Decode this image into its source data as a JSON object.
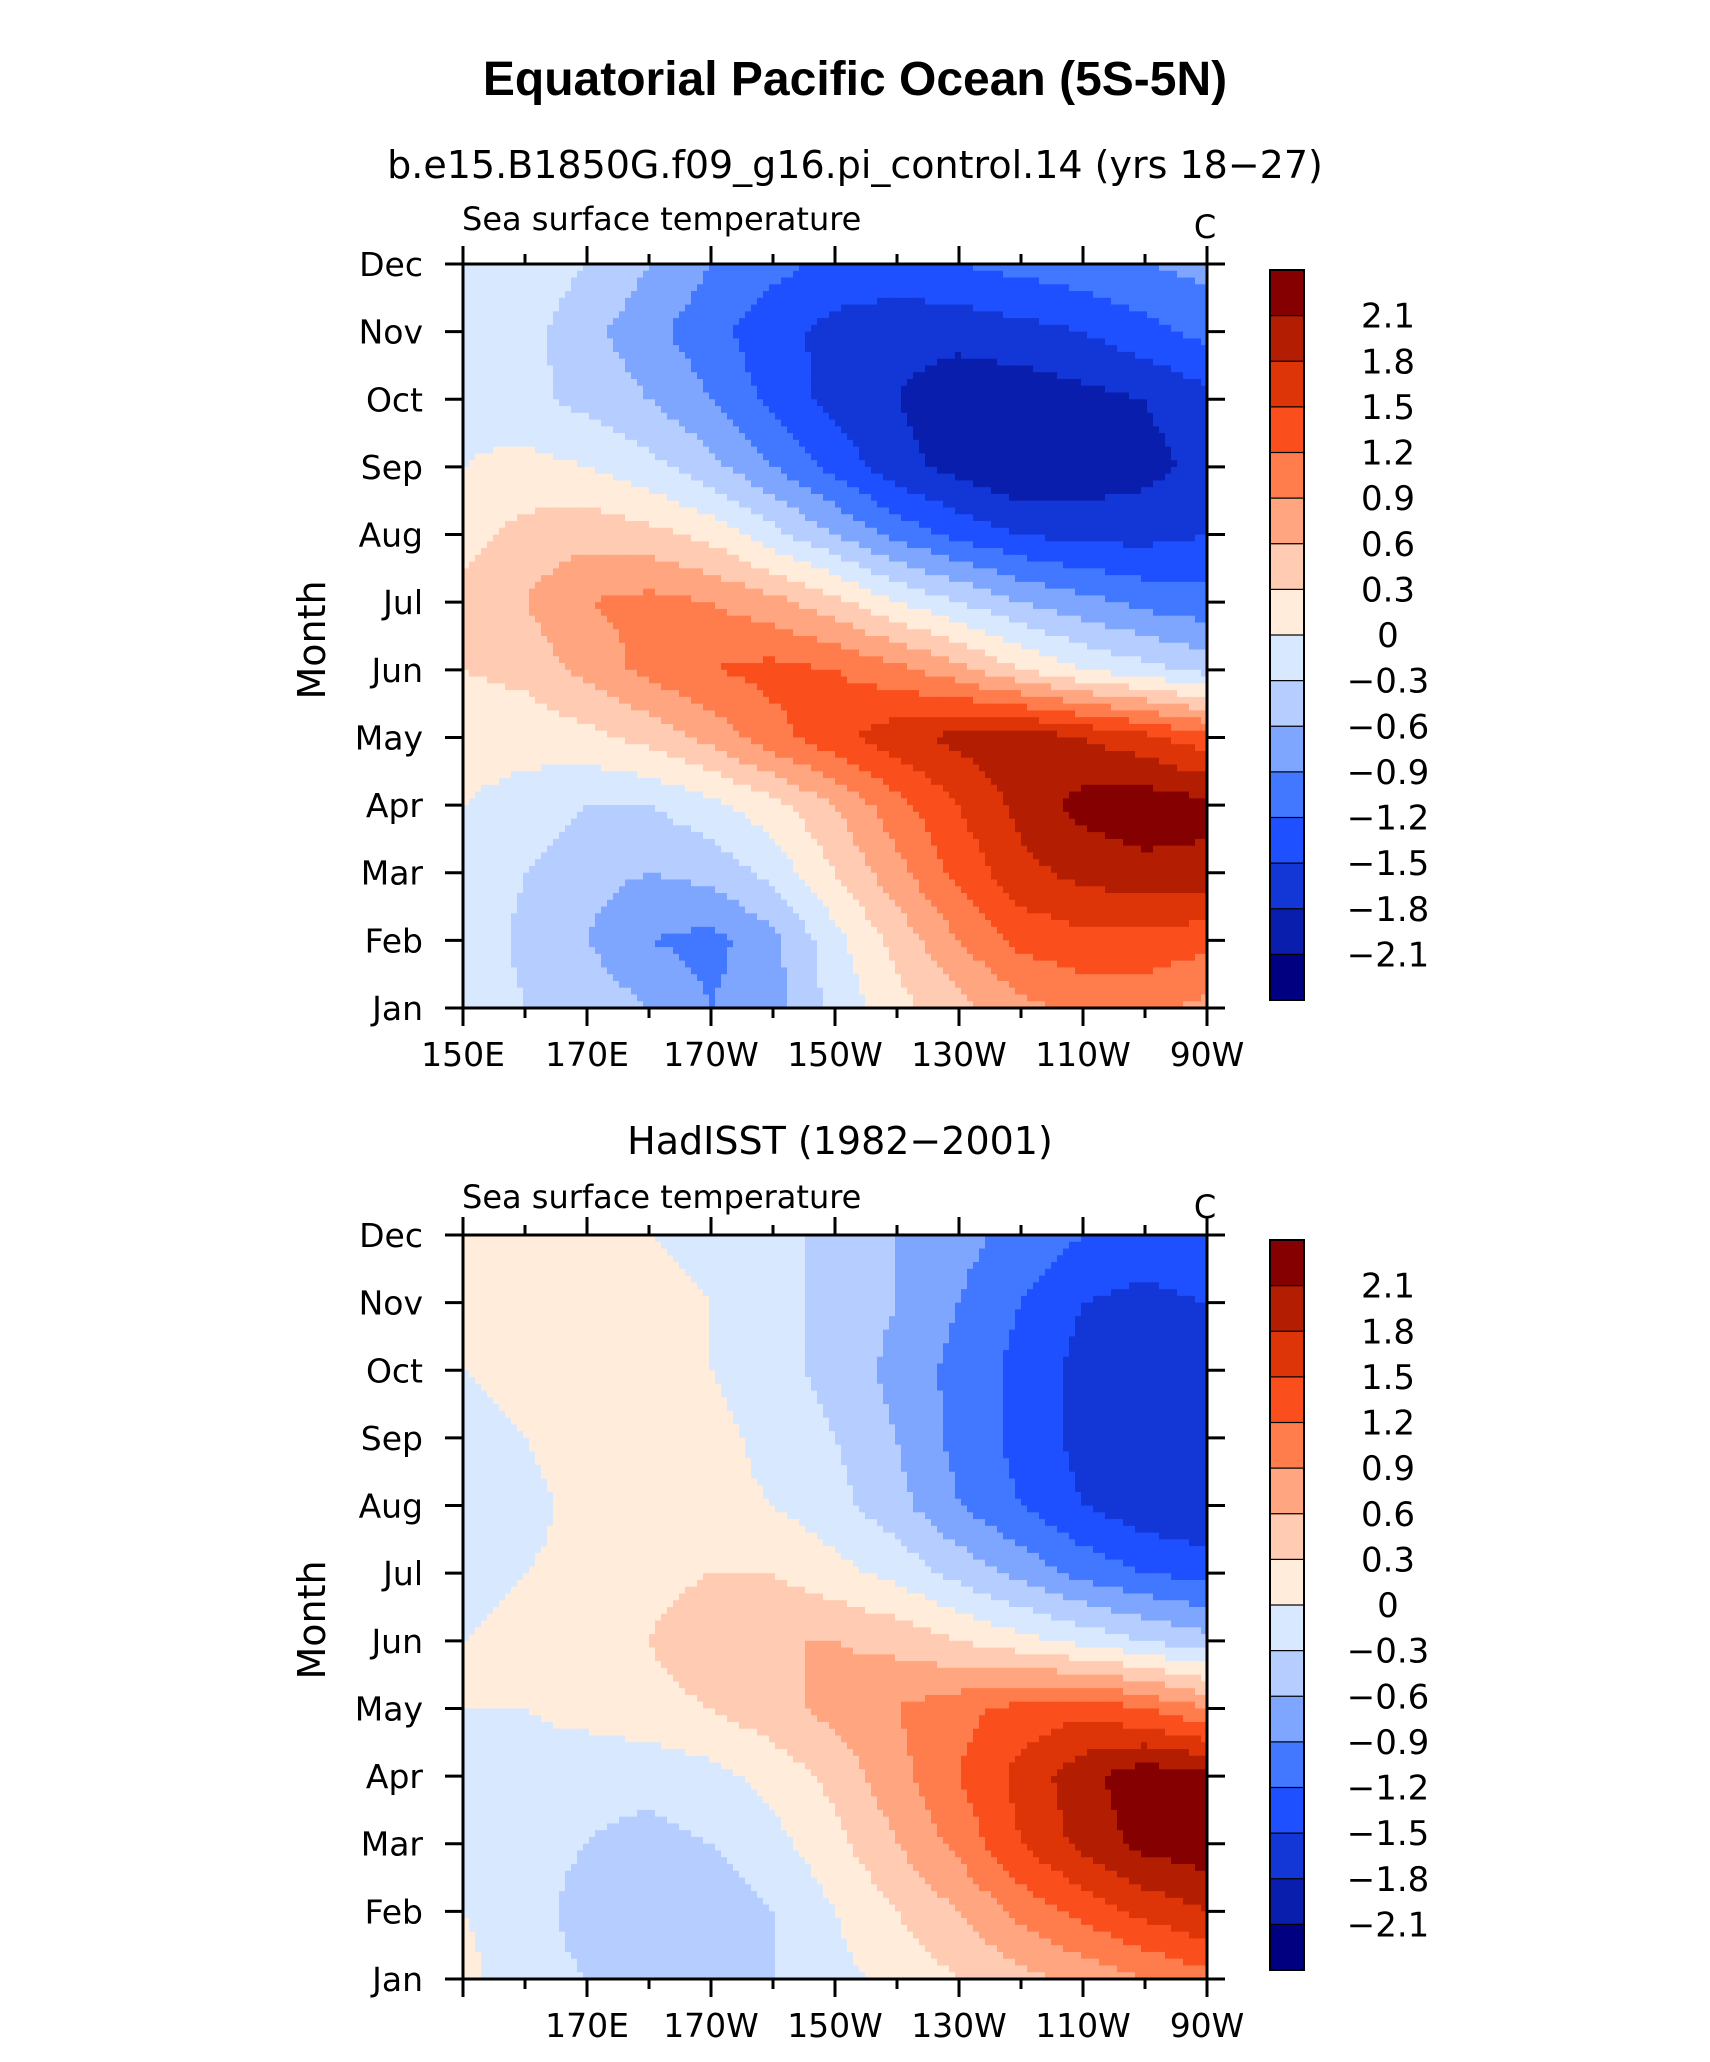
{
  "title": "Equatorial Pacific Ocean (5S-5N)",
  "colors": [
    "#000080",
    "#0A1EAE",
    "#1237D6",
    "#1E50FF",
    "#4178FF",
    "#7EA6FF",
    "#B5CDFF",
    "#D8E8FF",
    "#FFECDB",
    "#FFCCB3",
    "#FFA580",
    "#FF7C4D",
    "#FA4F1C",
    "#DD3408",
    "#B31E02",
    "#850000"
  ],
  "chart_data": [
    {
      "type": "heatmap",
      "title": "b.e15.B1850G.f09_g16.pi_control.14 (yrs 18−27)",
      "left_label": "Sea surface temperature",
      "right_label": "C",
      "ylabel": "Month",
      "x_tick_labels": [
        "150E",
        "170E",
        "170W",
        "150W",
        "130W",
        "110W",
        "90W"
      ],
      "y_tick_labels": [
        "Jan",
        "Feb",
        "Mar",
        "Apr",
        "May",
        "Jun",
        "Jul",
        "Aug",
        "Sep",
        "Oct",
        "Nov",
        "Dec"
      ],
      "xlim": [
        150,
        270
      ],
      "ylim": [
        "Jan",
        "Dec"
      ],
      "contour_levels": [
        "2.1",
        "1.8",
        "1.5",
        "1.2",
        "0.9",
        "0.6",
        "0.3",
        "0",
        "−0.3",
        "−0.6",
        "−0.9",
        "−1.2",
        "−1.5",
        "−1.8",
        "−2.1"
      ],
      "lon": [
        150,
        160,
        170,
        180,
        190,
        200,
        210,
        220,
        230,
        240,
        250,
        260,
        270
      ],
      "values": [
        [
          0.0,
          -0.3,
          -0.4,
          -0.6,
          -0.9,
          -0.7,
          -0.2,
          0.2,
          0.5,
          0.8,
          1.0,
          1.0,
          0.8
        ],
        [
          0.0,
          -0.4,
          -0.6,
          -0.9,
          -1.0,
          -0.7,
          -0.1,
          0.4,
          0.9,
          1.3,
          1.4,
          1.4,
          1.3
        ],
        [
          0.0,
          -0.3,
          -0.5,
          -0.6,
          -0.5,
          -0.2,
          0.3,
          0.8,
          1.3,
          1.7,
          1.9,
          2.0,
          2.0
        ],
        [
          0.0,
          -0.1,
          -0.3,
          -0.3,
          -0.1,
          0.2,
          0.6,
          1.1,
          1.5,
          1.9,
          2.2,
          2.3,
          2.2
        ],
        [
          0.1,
          0.1,
          0.2,
          0.4,
          0.7,
          1.1,
          1.4,
          1.7,
          1.9,
          2.0,
          1.8,
          1.6,
          1.3
        ],
        [
          0.3,
          0.4,
          0.7,
          1.0,
          1.2,
          1.3,
          1.2,
          1.0,
          0.7,
          0.3,
          0.0,
          -0.2,
          -0.4
        ],
        [
          0.4,
          0.6,
          0.9,
          1.0,
          0.9,
          0.7,
          0.4,
          0.0,
          -0.3,
          -0.6,
          -0.8,
          -1.0,
          -1.1
        ],
        [
          0.2,
          0.4,
          0.5,
          0.4,
          0.2,
          -0.2,
          -0.6,
          -1.0,
          -1.3,
          -1.5,
          -1.6,
          -1.6,
          -1.5
        ],
        [
          0.0,
          0.1,
          0.0,
          -0.2,
          -0.5,
          -0.9,
          -1.3,
          -1.7,
          -1.9,
          -2.1,
          -2.0,
          -1.9,
          -1.7
        ],
        [
          -0.1,
          -0.2,
          -0.4,
          -0.6,
          -0.9,
          -1.3,
          -1.6,
          -1.8,
          -2.0,
          -2.0,
          -1.9,
          -1.8,
          -1.6
        ],
        [
          0.0,
          -0.2,
          -0.5,
          -0.8,
          -1.1,
          -1.4,
          -1.6,
          -1.7,
          -1.7,
          -1.6,
          -1.5,
          -1.3,
          -1.1
        ],
        [
          0.0,
          -0.1,
          -0.3,
          -0.6,
          -0.9,
          -1.1,
          -1.3,
          -1.3,
          -1.2,
          -1.1,
          -1.0,
          -0.9,
          -0.8
        ]
      ]
    },
    {
      "type": "heatmap",
      "title": "HadISST (1982−2001)",
      "left_label": "Sea surface temperature",
      "right_label": "C",
      "ylabel": "Month",
      "x_tick_labels": [
        "170E",
        "170W",
        "150W",
        "130W",
        "110W",
        "90W"
      ],
      "y_tick_labels": [
        "Jan",
        "Feb",
        "Mar",
        "Apr",
        "May",
        "Jun",
        "Jul",
        "Aug",
        "Sep",
        "Oct",
        "Nov",
        "Dec"
      ],
      "xlim": [
        150,
        270
      ],
      "ylim": [
        "Jan",
        "Dec"
      ],
      "contour_levels": [
        "2.1",
        "1.8",
        "1.5",
        "1.2",
        "0.9",
        "0.6",
        "0.3",
        "0",
        "−0.3",
        "−0.6",
        "−0.9",
        "−1.2",
        "−1.5",
        "−1.8",
        "−2.1"
      ],
      "lon": [
        150,
        160,
        170,
        180,
        190,
        200,
        210,
        220,
        230,
        240,
        250,
        260,
        270
      ],
      "values": [
        [
          0.1,
          -0.2,
          -0.3,
          -0.4,
          -0.4,
          -0.3,
          -0.1,
          0.1,
          0.3,
          0.5,
          0.7,
          0.9,
          1.1
        ],
        [
          0.0,
          -0.2,
          -0.4,
          -0.5,
          -0.5,
          -0.3,
          0.0,
          0.3,
          0.6,
          1.0,
          1.3,
          1.6,
          1.8
        ],
        [
          0.0,
          -0.2,
          -0.3,
          -0.4,
          -0.3,
          -0.1,
          0.2,
          0.6,
          1.0,
          1.5,
          1.9,
          2.2,
          2.3
        ],
        [
          0.0,
          -0.1,
          -0.2,
          -0.2,
          -0.1,
          0.1,
          0.4,
          0.8,
          1.2,
          1.6,
          2.0,
          2.3,
          2.2
        ],
        [
          0.0,
          0.0,
          0.1,
          0.2,
          0.3,
          0.5,
          0.7,
          0.9,
          1.1,
          1.3,
          1.4,
          1.2,
          0.9
        ],
        [
          0.0,
          0.1,
          0.2,
          0.3,
          0.5,
          0.6,
          0.6,
          0.5,
          0.3,
          0.1,
          -0.1,
          -0.3,
          -0.5
        ],
        [
          -0.1,
          0.0,
          0.1,
          0.2,
          0.3,
          0.3,
          0.1,
          -0.1,
          -0.4,
          -0.7,
          -1.0,
          -1.2,
          -1.3
        ],
        [
          -0.2,
          -0.1,
          0.1,
          0.2,
          0.1,
          0.0,
          -0.2,
          -0.5,
          -0.9,
          -1.2,
          -1.5,
          -1.7,
          -1.8
        ],
        [
          -0.1,
          0.0,
          0.2,
          0.3,
          0.1,
          -0.1,
          -0.3,
          -0.6,
          -1.0,
          -1.3,
          -1.6,
          -1.8,
          -1.8
        ],
        [
          0.0,
          0.1,
          0.2,
          0.2,
          0.0,
          -0.2,
          -0.4,
          -0.7,
          -1.0,
          -1.3,
          -1.6,
          -1.8,
          -1.7
        ],
        [
          0.1,
          0.1,
          0.1,
          0.1,
          0.0,
          -0.2,
          -0.4,
          -0.6,
          -0.9,
          -1.2,
          -1.5,
          -1.6,
          -1.5
        ],
        [
          0.1,
          0.1,
          0.1,
          0.0,
          -0.1,
          -0.2,
          -0.4,
          -0.6,
          -0.8,
          -1.0,
          -1.2,
          -1.3,
          -1.2
        ]
      ]
    }
  ]
}
